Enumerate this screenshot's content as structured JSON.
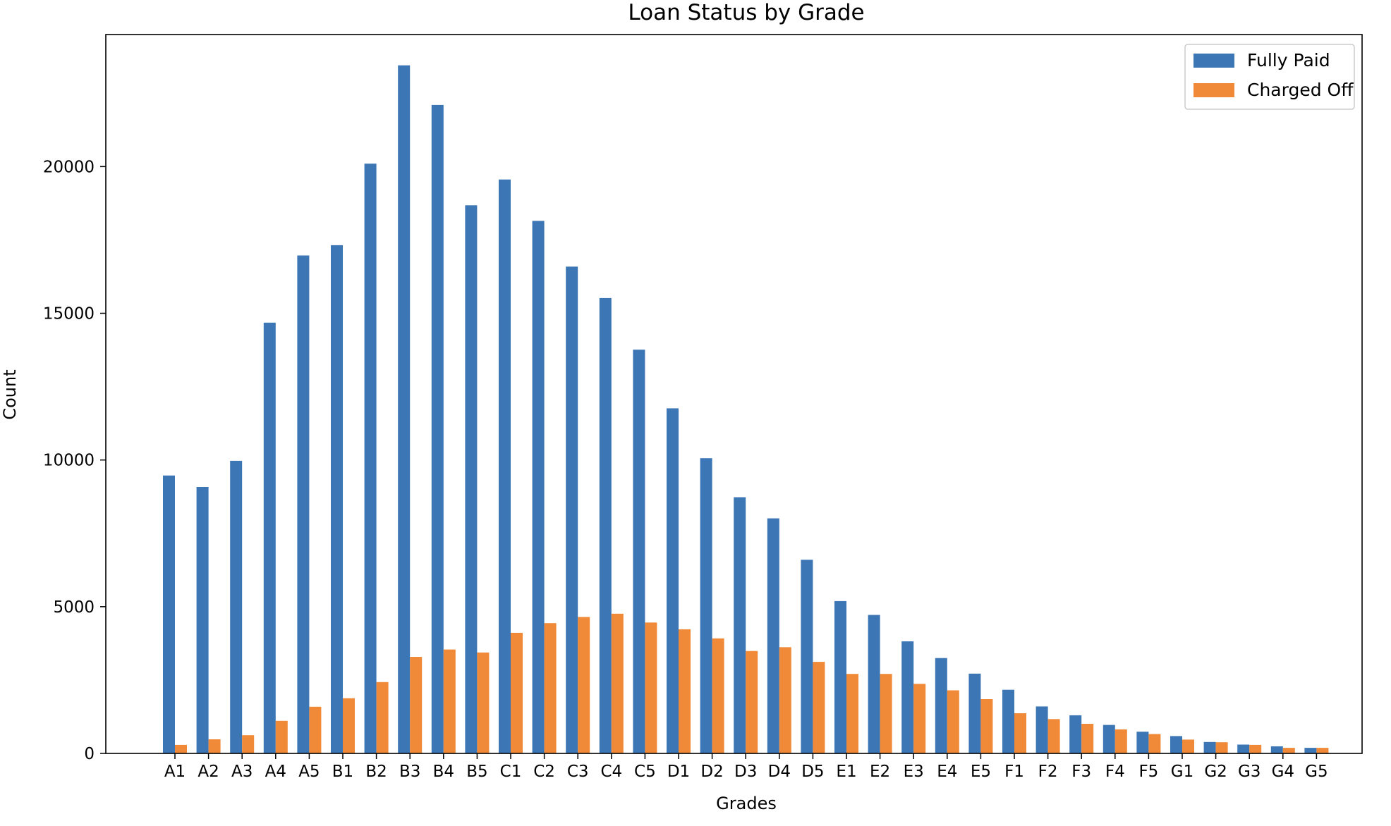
{
  "chart_data": {
    "type": "bar",
    "title": "Loan Status by Grade",
    "xlabel": "Grades",
    "ylabel": "Count",
    "ylim": [
      0,
      24500
    ],
    "yticks": [
      0,
      5000,
      10000,
      15000,
      20000
    ],
    "legend_position": "top-right",
    "grid": false,
    "categories": [
      "A1",
      "A2",
      "A3",
      "A4",
      "A5",
      "B1",
      "B2",
      "B3",
      "B4",
      "B5",
      "C1",
      "C2",
      "C3",
      "C4",
      "C5",
      "D1",
      "D2",
      "D3",
      "D4",
      "D5",
      "E1",
      "E2",
      "E3",
      "E4",
      "E5",
      "F1",
      "F2",
      "F3",
      "F4",
      "F5",
      "G1",
      "G2",
      "G3",
      "G4",
      "G5"
    ],
    "series": [
      {
        "name": "Fully Paid",
        "color": "#3c76b5",
        "values": [
          9470,
          9080,
          9970,
          14680,
          16970,
          17320,
          20100,
          23450,
          22100,
          18680,
          19560,
          18150,
          16590,
          15520,
          13760,
          11760,
          10060,
          8730,
          8010,
          6600,
          5190,
          4720,
          3820,
          3250,
          2720,
          2170,
          1600,
          1300,
          970,
          740,
          590,
          390,
          300,
          240,
          190
        ]
      },
      {
        "name": "Charged Off",
        "color": "#f08a38",
        "values": [
          290,
          480,
          620,
          1110,
          1590,
          1880,
          2430,
          3290,
          3540,
          3440,
          4110,
          4440,
          4650,
          4760,
          4460,
          4230,
          3920,
          3490,
          3620,
          3120,
          2710,
          2710,
          2370,
          2150,
          1850,
          1370,
          1170,
          1010,
          820,
          660,
          470,
          380,
          290,
          190,
          190
        ]
      }
    ]
  }
}
